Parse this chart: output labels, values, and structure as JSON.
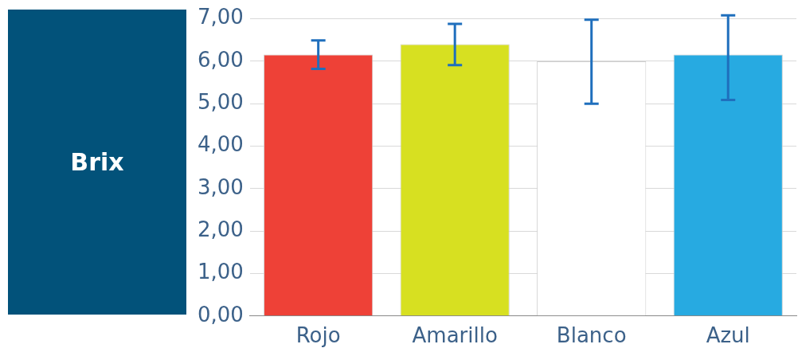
{
  "chart_data": {
    "type": "bar",
    "title": "Brix",
    "categories": [
      "Rojo",
      "Amarillo",
      "Blanco",
      "Azul"
    ],
    "values": [
      6.16,
      6.4,
      6.0,
      6.16
    ],
    "colors": [
      "#ee4137",
      "#d7e021",
      "#ffffff",
      "#27aae1"
    ],
    "errors": [
      [
        5.82,
        6.49
      ],
      [
        5.91,
        6.88
      ],
      [
        5.0,
        6.98
      ],
      [
        5.09,
        7.08
      ]
    ],
    "ylim": [
      0,
      7
    ],
    "yticks": [
      {
        "value": 0,
        "label": "0,00"
      },
      {
        "value": 1,
        "label": "1,00"
      },
      {
        "value": 2,
        "label": "2,00"
      },
      {
        "value": 3,
        "label": "3,00"
      },
      {
        "value": 4,
        "label": "4,00"
      },
      {
        "value": 5,
        "label": "5,00"
      },
      {
        "value": 6,
        "label": "6,00"
      },
      {
        "value": 7,
        "label": "7,00"
      }
    ],
    "grid": "y",
    "legend": false
  }
}
